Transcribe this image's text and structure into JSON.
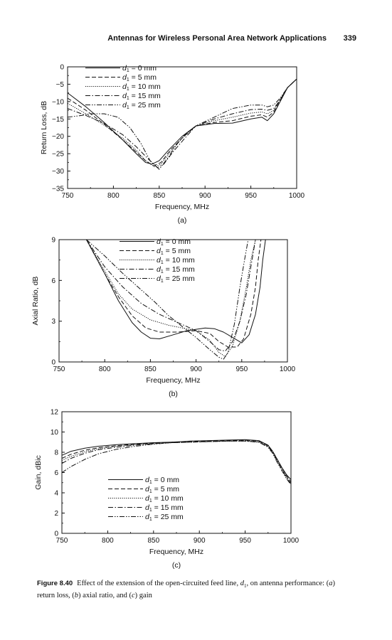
{
  "header": {
    "title": "Antennas for Wireless Personal Area Network Applications",
    "page_number": "339"
  },
  "caption": {
    "label": "Figure 8.40",
    "text": "Effect of the extension of the open-circuited feed line, d1, on antenna performance: (a) return loss, (b) axial ratio, and (c) gain"
  },
  "chart_data": [
    {
      "type": "line",
      "panel_label": "(a)",
      "xlabel": "Frequency, MHz",
      "ylabel": "Return Loss, dB",
      "xlim": [
        750,
        1000
      ],
      "ylim": [
        -35,
        0
      ],
      "xticks": [
        750,
        800,
        850,
        900,
        950,
        1000
      ],
      "yticks": [
        0,
        -5,
        -10,
        -15,
        -20,
        -25,
        -30,
        -35
      ],
      "legend_position": "top-center",
      "series": [
        {
          "name": "d1 = 0 mm",
          "dash": "solid",
          "x": [
            750,
            770,
            790,
            810,
            825,
            835,
            842,
            850,
            860,
            875,
            890,
            910,
            930,
            950,
            962,
            968,
            975,
            982,
            990,
            1000
          ],
          "y": [
            -7.5,
            -11.5,
            -16,
            -21,
            -25,
            -27.5,
            -28,
            -27,
            -24,
            -20,
            -17,
            -16.3,
            -16.2,
            -15,
            -14.5,
            -15.5,
            -13.5,
            -10,
            -6,
            -3.5
          ]
        },
        {
          "name": "d1 = 5 mm",
          "dash": "dashed",
          "x": [
            750,
            770,
            790,
            810,
            825,
            835,
            844,
            852,
            862,
            875,
            890,
            910,
            930,
            950,
            962,
            968,
            975,
            982,
            990,
            1000
          ],
          "y": [
            -9,
            -12.5,
            -16.5,
            -21,
            -24.5,
            -27,
            -28.5,
            -27.5,
            -24,
            -20.5,
            -17,
            -16,
            -15.5,
            -14.2,
            -13.8,
            -14.5,
            -13,
            -9.5,
            -6,
            -3.5
          ]
        },
        {
          "name": "d1 = 10 mm",
          "dash": "dotted",
          "x": [
            750,
            770,
            790,
            810,
            825,
            835,
            845,
            852,
            862,
            875,
            890,
            910,
            930,
            950,
            962,
            968,
            975,
            982,
            990,
            1000
          ],
          "y": [
            -10.5,
            -13.5,
            -16.8,
            -20.5,
            -24,
            -27,
            -28.8,
            -28,
            -24.5,
            -20.5,
            -17,
            -15.5,
            -14.5,
            -13.3,
            -13,
            -13.5,
            -12.5,
            -9.5,
            -6,
            -3.5
          ]
        },
        {
          "name": "d1 = 15 mm",
          "dash": "dashdot",
          "x": [
            750,
            770,
            790,
            810,
            825,
            838,
            848,
            855,
            865,
            878,
            890,
            910,
            930,
            950,
            962,
            968,
            975,
            982,
            990,
            1000
          ],
          "y": [
            -12,
            -14,
            -16.3,
            -19.5,
            -23,
            -26.5,
            -29,
            -28,
            -24.5,
            -20.5,
            -17,
            -15,
            -13.5,
            -12.3,
            -12.2,
            -12.5,
            -12,
            -9.5,
            -6,
            -3.5
          ]
        },
        {
          "name": "d1 = 25 mm",
          "dash": "dashdotdot",
          "x": [
            750,
            765,
            775,
            790,
            805,
            818,
            830,
            840,
            850,
            860,
            870,
            880,
            890,
            910,
            930,
            950,
            962,
            968,
            975,
            982,
            990,
            1000
          ],
          "y": [
            -14.5,
            -14,
            -13.5,
            -13.5,
            -14.5,
            -17.5,
            -22,
            -27,
            -29.5,
            -26,
            -22,
            -19,
            -17,
            -14.5,
            -12,
            -11,
            -11,
            -11.5,
            -11,
            -9,
            -6,
            -3.5
          ]
        }
      ]
    },
    {
      "type": "line",
      "panel_label": "(b)",
      "xlabel": "Frequency, MHz",
      "ylabel": "Axial Ratio, dB",
      "xlim": [
        750,
        1000
      ],
      "ylim": [
        0,
        9
      ],
      "xticks": [
        750,
        800,
        850,
        900,
        950,
        1000
      ],
      "yticks": [
        0,
        3,
        6,
        9
      ],
      "legend_position": "top-center",
      "series": [
        {
          "name": "d1 = 0 mm",
          "dash": "solid",
          "x": [
            780,
            800,
            815,
            830,
            840,
            850,
            860,
            875,
            890,
            900,
            910,
            920,
            930,
            940,
            950,
            958,
            965,
            970,
            973,
            976
          ],
          "y": [
            9,
            6.5,
            4.5,
            2.9,
            2.2,
            1.75,
            1.7,
            2.0,
            2.3,
            2.4,
            2.5,
            2.45,
            2.2,
            1.8,
            1.4,
            2.0,
            3.5,
            5.5,
            7.5,
            9
          ]
        },
        {
          "name": "d1 = 5 mm",
          "dash": "dashed",
          "x": [
            780,
            800,
            815,
            830,
            845,
            860,
            880,
            900,
            915,
            925,
            935,
            945,
            952,
            960,
            965,
            968,
            971
          ],
          "y": [
            9,
            6.5,
            4.8,
            3.4,
            2.5,
            2.2,
            2.2,
            2.3,
            2.1,
            1.5,
            1.1,
            1.1,
            1.7,
            3.5,
            5.5,
            7.5,
            9
          ]
        },
        {
          "name": "d1 = 10 mm",
          "dash": "dotted",
          "x": [
            780,
            800,
            815,
            830,
            850,
            870,
            885,
            900,
            915,
            925,
            932,
            940,
            948,
            955,
            960,
            965
          ],
          "y": [
            9,
            6.7,
            5.0,
            3.9,
            3.1,
            2.7,
            2.5,
            2.3,
            1.6,
            0.7,
            0.4,
            1.2,
            3.0,
            5.5,
            7.5,
            9
          ]
        },
        {
          "name": "d1 = 15 mm",
          "dash": "dashdot",
          "x": [
            780,
            800,
            820,
            840,
            860,
            880,
            900,
            915,
            925,
            932,
            940,
            948,
            955,
            960,
            965
          ],
          "y": [
            9,
            7.0,
            5.5,
            4.3,
            3.5,
            2.9,
            2.3,
            1.5,
            0.9,
            0.8,
            1.5,
            3.0,
            5.0,
            7.0,
            9
          ]
        },
        {
          "name": "d1 = 25 mm",
          "dash": "dashdotdot",
          "x": [
            780,
            800,
            820,
            840,
            855,
            870,
            885,
            900,
            915,
            925,
            930,
            935,
            942,
            948,
            953,
            957
          ],
          "y": [
            9,
            7.8,
            6.5,
            5.3,
            4.4,
            3.4,
            2.6,
            1.8,
            0.9,
            0.35,
            0.2,
            0.7,
            2.8,
            5.5,
            7.5,
            9
          ]
        }
      ]
    },
    {
      "type": "line",
      "panel_label": "(c)",
      "xlabel": "Frequency, MHz",
      "ylabel": "Gain, dBic",
      "xlim": [
        750,
        1000
      ],
      "ylim": [
        0,
        12
      ],
      "xticks": [
        750,
        800,
        850,
        900,
        950,
        1000
      ],
      "yticks": [
        0,
        2,
        4,
        6,
        8,
        10,
        12
      ],
      "legend_position": "bottom-center",
      "series": [
        {
          "name": "d1 = 0 mm",
          "dash": "solid",
          "x": [
            750,
            760,
            775,
            790,
            810,
            830,
            850,
            870,
            890,
            910,
            930,
            950,
            965,
            975,
            980,
            985,
            990,
            995,
            1000
          ],
          "y": [
            7.7,
            8.1,
            8.4,
            8.6,
            8.75,
            8.85,
            8.95,
            9.0,
            9.1,
            9.15,
            9.2,
            9.25,
            9.15,
            8.7,
            8.1,
            7.3,
            6.5,
            5.8,
            5.3
          ]
        },
        {
          "name": "d1 = 5 mm",
          "dash": "dashed",
          "x": [
            750,
            760,
            775,
            790,
            810,
            830,
            850,
            870,
            890,
            910,
            930,
            950,
            965,
            975,
            980,
            985,
            990,
            995,
            1000
          ],
          "y": [
            7.4,
            7.8,
            8.2,
            8.45,
            8.65,
            8.8,
            8.9,
            9.0,
            9.05,
            9.1,
            9.15,
            9.2,
            9.1,
            8.65,
            8.1,
            7.3,
            6.5,
            5.7,
            5.1
          ]
        },
        {
          "name": "d1 = 10 mm",
          "dash": "dotted",
          "x": [
            750,
            760,
            775,
            790,
            810,
            830,
            850,
            870,
            890,
            910,
            930,
            950,
            965,
            975,
            980,
            985,
            990,
            995,
            1000
          ],
          "y": [
            7.2,
            7.6,
            8.05,
            8.35,
            8.6,
            8.75,
            8.85,
            8.95,
            9.0,
            9.05,
            9.1,
            9.15,
            9.05,
            8.6,
            8.0,
            7.2,
            6.4,
            5.6,
            5.0
          ]
        },
        {
          "name": "d1 = 15 mm",
          "dash": "dashdot",
          "x": [
            750,
            760,
            775,
            790,
            810,
            830,
            850,
            870,
            890,
            910,
            930,
            950,
            965,
            975,
            980,
            985,
            990,
            995,
            1000
          ],
          "y": [
            6.9,
            7.4,
            7.9,
            8.25,
            8.5,
            8.7,
            8.85,
            8.95,
            9.0,
            9.05,
            9.1,
            9.1,
            9.0,
            8.55,
            8.0,
            7.1,
            6.3,
            5.5,
            4.9
          ]
        },
        {
          "name": "d1 = 25 mm",
          "dash": "dashdotdot",
          "x": [
            750,
            760,
            775,
            790,
            810,
            830,
            850,
            870,
            890,
            910,
            930,
            950,
            965,
            975,
            980,
            985,
            990,
            995,
            1000
          ],
          "y": [
            6.0,
            6.6,
            7.3,
            7.85,
            8.3,
            8.6,
            8.8,
            8.95,
            9.0,
            9.05,
            9.1,
            9.1,
            9.0,
            8.5,
            7.9,
            7.0,
            6.2,
            5.4,
            4.8
          ]
        }
      ]
    }
  ]
}
